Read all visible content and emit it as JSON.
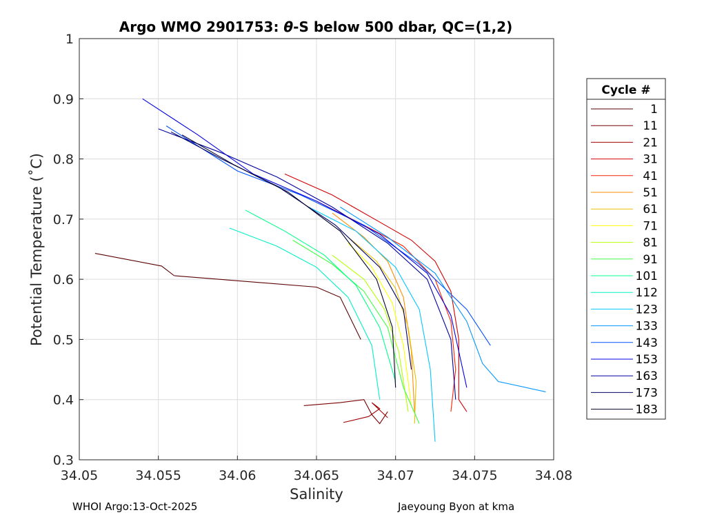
{
  "chart_data": {
    "type": "line",
    "title_prefix": "Argo WMO 2901753: ",
    "title_theta": "θ",
    "title_suffix": "-S below 500 dbar,  QC=(1,2)",
    "xlabel": "Salinity",
    "ylabel": "Potential Temperature (˚C)",
    "xlim": [
      34.05,
      34.08
    ],
    "ylim": [
      0.3,
      1.0
    ],
    "x_ticks": [
      "34.05",
      "34.055",
      "34.06",
      "34.065",
      "34.07",
      "34.075",
      "34.08"
    ],
    "y_ticks": [
      "0.3",
      "0.4",
      "0.5",
      "0.6",
      "0.7",
      "0.8",
      "0.9",
      "1"
    ],
    "grid": true,
    "legend": {
      "title": "Cycle #",
      "position": "right-outside",
      "entries": [
        {
          "label": "1",
          "color": "#5a0000"
        },
        {
          "label": "11",
          "color": "#7a0000"
        },
        {
          "label": "21",
          "color": "#a00000"
        },
        {
          "label": "31",
          "color": "#d40000"
        },
        {
          "label": "41",
          "color": "#ff2000"
        },
        {
          "label": "51",
          "color": "#ff8c00"
        },
        {
          "label": "61",
          "color": "#e8c000"
        },
        {
          "label": "71",
          "color": "#ffff00"
        },
        {
          "label": "81",
          "color": "#b4ff00"
        },
        {
          "label": "91",
          "color": "#40ff40"
        },
        {
          "label": "101",
          "color": "#00ff8c"
        },
        {
          "label": "112",
          "color": "#00f0c8"
        },
        {
          "label": "123",
          "color": "#00c8ff"
        },
        {
          "label": "133",
          "color": "#0096ff"
        },
        {
          "label": "143",
          "color": "#0050ff"
        },
        {
          "label": "153",
          "color": "#0000e6"
        },
        {
          "label": "163",
          "color": "#0000a0"
        },
        {
          "label": "173",
          "color": "#000064"
        },
        {
          "label": "183",
          "color": "#000028"
        }
      ]
    },
    "series": [
      {
        "cycle": "1",
        "color": "#5a0000",
        "points": [
          [
            34.051,
            0.643
          ],
          [
            34.0552,
            0.622
          ],
          [
            34.056,
            0.606
          ],
          [
            34.065,
            0.587
          ],
          [
            34.0665,
            0.57
          ],
          [
            34.0678,
            0.5
          ]
        ]
      },
      {
        "cycle": "11",
        "color": "#7a0000",
        "points": [
          [
            34.0642,
            0.39
          ],
          [
            34.0665,
            0.395
          ],
          [
            34.068,
            0.4
          ],
          [
            34.0685,
            0.375
          ],
          [
            34.069,
            0.36
          ],
          [
            34.0695,
            0.38
          ]
        ]
      },
      {
        "cycle": "21",
        "color": "#a00000",
        "points": [
          [
            34.0667,
            0.362
          ],
          [
            34.0683,
            0.372
          ],
          [
            34.069,
            0.385
          ],
          [
            34.0685,
            0.395
          ],
          [
            34.0695,
            0.37
          ]
        ]
      },
      {
        "cycle": "31",
        "color": "#d40000",
        "points": [
          [
            34.063,
            0.775
          ],
          [
            34.066,
            0.74
          ],
          [
            34.069,
            0.695
          ],
          [
            34.071,
            0.665
          ],
          [
            34.0725,
            0.63
          ],
          [
            34.0735,
            0.58
          ],
          [
            34.074,
            0.5
          ],
          [
            34.074,
            0.4
          ],
          [
            34.0745,
            0.38
          ]
        ]
      },
      {
        "cycle": "41",
        "color": "#ff2000",
        "points": [
          [
            34.065,
            0.73
          ],
          [
            34.068,
            0.69
          ],
          [
            34.0705,
            0.655
          ],
          [
            34.0725,
            0.6
          ],
          [
            34.0735,
            0.53
          ],
          [
            34.0738,
            0.45
          ],
          [
            34.0735,
            0.38
          ]
        ]
      },
      {
        "cycle": "51",
        "color": "#ff8c00",
        "points": [
          [
            34.066,
            0.71
          ],
          [
            34.068,
            0.67
          ],
          [
            34.0695,
            0.63
          ],
          [
            34.0705,
            0.57
          ],
          [
            34.071,
            0.48
          ],
          [
            34.0712,
            0.38
          ]
        ]
      },
      {
        "cycle": "61",
        "color": "#e8c000",
        "points": [
          [
            34.067,
            0.67
          ],
          [
            34.0688,
            0.63
          ],
          [
            34.07,
            0.585
          ],
          [
            34.0708,
            0.52
          ],
          [
            34.0713,
            0.43
          ],
          [
            34.0712,
            0.36
          ]
        ]
      },
      {
        "cycle": "71",
        "color": "#ffff00",
        "points": [
          [
            34.067,
            0.66
          ],
          [
            34.0685,
            0.62
          ],
          [
            34.0698,
            0.56
          ],
          [
            34.0705,
            0.49
          ],
          [
            34.071,
            0.39
          ]
        ]
      },
      {
        "cycle": "81",
        "color": "#b4ff00",
        "points": [
          [
            34.066,
            0.64
          ],
          [
            34.068,
            0.6
          ],
          [
            34.0693,
            0.55
          ],
          [
            34.0702,
            0.48
          ],
          [
            34.0708,
            0.38
          ]
        ]
      },
      {
        "cycle": "91",
        "color": "#40ff40",
        "points": [
          [
            34.0635,
            0.665
          ],
          [
            34.066,
            0.625
          ],
          [
            34.068,
            0.58
          ],
          [
            34.0695,
            0.52
          ],
          [
            34.0705,
            0.42
          ],
          [
            34.0715,
            0.36
          ]
        ]
      },
      {
        "cycle": "101",
        "color": "#00ff8c",
        "points": [
          [
            34.0605,
            0.715
          ],
          [
            34.063,
            0.68
          ],
          [
            34.0655,
            0.64
          ],
          [
            34.0675,
            0.59
          ],
          [
            34.069,
            0.52
          ],
          [
            34.07,
            0.43
          ]
        ]
      },
      {
        "cycle": "112",
        "color": "#00f0c8",
        "points": [
          [
            34.0595,
            0.685
          ],
          [
            34.0625,
            0.655
          ],
          [
            34.065,
            0.62
          ],
          [
            34.067,
            0.57
          ],
          [
            34.0685,
            0.49
          ],
          [
            34.069,
            0.4
          ]
        ]
      },
      {
        "cycle": "123",
        "color": "#00c8ff",
        "points": [
          [
            34.0645,
            0.72
          ],
          [
            34.0675,
            0.68
          ],
          [
            34.07,
            0.62
          ],
          [
            34.0715,
            0.55
          ],
          [
            34.0722,
            0.45
          ],
          [
            34.0725,
            0.33
          ]
        ]
      },
      {
        "cycle": "133",
        "color": "#0096ff",
        "points": [
          [
            34.0665,
            0.72
          ],
          [
            34.0695,
            0.67
          ],
          [
            34.0725,
            0.61
          ],
          [
            34.0745,
            0.53
          ],
          [
            34.0755,
            0.46
          ],
          [
            34.0765,
            0.43
          ],
          [
            34.0795,
            0.413
          ]
        ]
      },
      {
        "cycle": "143",
        "color": "#0050ff",
        "points": [
          [
            34.0555,
            0.855
          ],
          [
            34.06,
            0.78
          ],
          [
            34.064,
            0.74
          ],
          [
            34.068,
            0.69
          ],
          [
            34.0715,
            0.625
          ],
          [
            34.0745,
            0.55
          ],
          [
            34.076,
            0.49
          ]
        ]
      },
      {
        "cycle": "153",
        "color": "#0000e6",
        "points": [
          [
            34.054,
            0.9
          ],
          [
            34.0575,
            0.84
          ],
          [
            34.061,
            0.775
          ],
          [
            34.065,
            0.73
          ],
          [
            34.069,
            0.675
          ],
          [
            34.072,
            0.61
          ],
          [
            34.0735,
            0.54
          ],
          [
            34.0745,
            0.42
          ]
        ]
      },
      {
        "cycle": "163",
        "color": "#0000a0",
        "points": [
          [
            34.055,
            0.85
          ],
          [
            34.059,
            0.81
          ],
          [
            34.0625,
            0.77
          ],
          [
            34.066,
            0.72
          ],
          [
            34.0695,
            0.66
          ],
          [
            34.072,
            0.6
          ],
          [
            34.0735,
            0.5
          ],
          [
            34.0738,
            0.4
          ]
        ]
      },
      {
        "cycle": "173",
        "color": "#000064",
        "points": [
          [
            34.0558,
            0.845
          ],
          [
            34.059,
            0.8
          ],
          [
            34.0625,
            0.755
          ],
          [
            34.0662,
            0.69
          ],
          [
            34.069,
            0.62
          ],
          [
            34.0705,
            0.55
          ],
          [
            34.071,
            0.45
          ]
        ]
      },
      {
        "cycle": "183",
        "color": "#000028",
        "points": [
          [
            34.0565,
            0.84
          ],
          [
            34.0598,
            0.79
          ],
          [
            34.0632,
            0.745
          ],
          [
            34.0665,
            0.68
          ],
          [
            34.0688,
            0.6
          ],
          [
            34.0698,
            0.52
          ],
          [
            34.07,
            0.42
          ]
        ]
      }
    ]
  },
  "footer": {
    "left": "WHOI Argo:13-Oct-2025",
    "right": "Jaeyoung Byon at kma"
  }
}
